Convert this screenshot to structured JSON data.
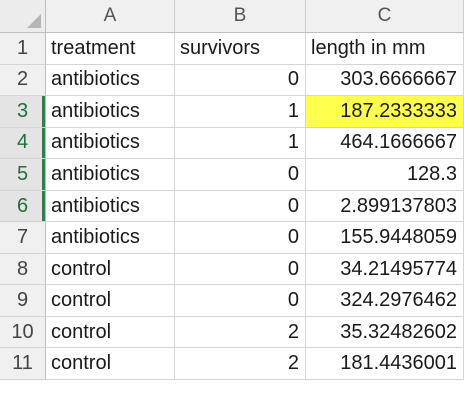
{
  "columns": [
    "A",
    "B",
    "C"
  ],
  "selected_rows": [
    3,
    4,
    5,
    6
  ],
  "highlight_color": "#ffff4d",
  "header_row": {
    "row_number": "1",
    "cells": [
      "treatment",
      "survivors",
      "length in mm"
    ]
  },
  "rows": [
    {
      "row_number": "2",
      "treatment": "antibiotics",
      "survivors": "0",
      "length": "303.6666667",
      "highlighted": false
    },
    {
      "row_number": "3",
      "treatment": "antibiotics",
      "survivors": "1",
      "length": "187.2333333",
      "highlighted": true
    },
    {
      "row_number": "4",
      "treatment": "antibiotics",
      "survivors": "1",
      "length": "464.1666667",
      "highlighted": false
    },
    {
      "row_number": "5",
      "treatment": "antibiotics",
      "survivors": "0",
      "length": "128.3",
      "highlighted": false
    },
    {
      "row_number": "6",
      "treatment": "antibiotics",
      "survivors": "0",
      "length": "2.899137803",
      "highlighted": false
    },
    {
      "row_number": "7",
      "treatment": "antibiotics",
      "survivors": "0",
      "length": "155.9448059",
      "highlighted": false
    },
    {
      "row_number": "8",
      "treatment": "control",
      "survivors": "0",
      "length": "34.21495774",
      "highlighted": false
    },
    {
      "row_number": "9",
      "treatment": "control",
      "survivors": "0",
      "length": "324.2976462",
      "highlighted": false
    },
    {
      "row_number": "10",
      "treatment": "control",
      "survivors": "2",
      "length": "35.32482602",
      "highlighted": false
    },
    {
      "row_number": "11",
      "treatment": "control",
      "survivors": "2",
      "length": "181.4436001",
      "highlighted": false
    }
  ]
}
